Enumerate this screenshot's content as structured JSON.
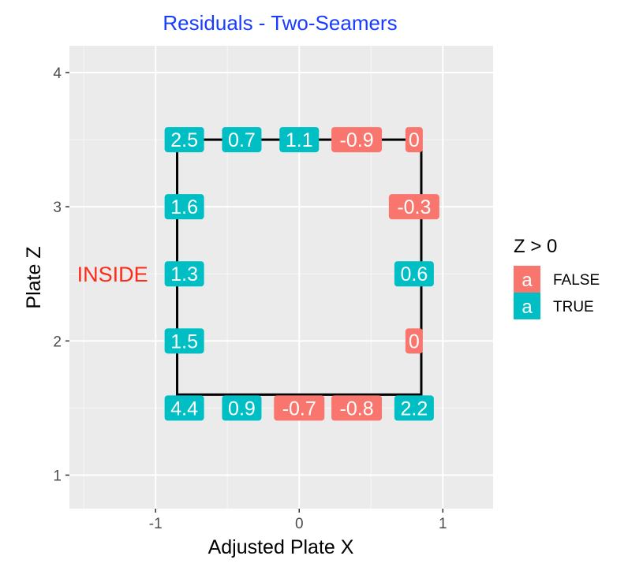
{
  "chart_data": {
    "type": "scatter",
    "title": "Residuals - Two-Seamers",
    "title_color": "#1a3cff",
    "xlabel": "Adjusted Plate X",
    "ylabel": "Plate Z",
    "xlim": [
      -1.6,
      1.35
    ],
    "ylim": [
      0.75,
      4.2
    ],
    "x_ticks": [
      -1,
      0,
      1
    ],
    "x_tick_labels": [
      "-1",
      "0",
      "1"
    ],
    "y_ticks": [
      1,
      2,
      3,
      4
    ],
    "y_tick_labels": [
      "1",
      "2",
      "3",
      "4"
    ],
    "grid": true,
    "panel_background": "#ebebeb",
    "strike_zone": {
      "x": [
        -0.85,
        0.85
      ],
      "z": [
        1.6,
        3.5
      ]
    },
    "annotation": {
      "text": "INSIDE",
      "x": -1.3,
      "z": 2.5,
      "color": "#ff2a1a"
    },
    "legend": {
      "title": "Z > 0",
      "position": "right",
      "entries": [
        {
          "label": "FALSE",
          "glyph": "a",
          "color": "#f8766d"
        },
        {
          "label": "TRUE",
          "glyph": "a",
          "color": "#00bfc4"
        }
      ]
    },
    "points": [
      {
        "x": -0.8,
        "z": 3.5,
        "label": "2.5",
        "positive": true
      },
      {
        "x": -0.4,
        "z": 3.5,
        "label": "0.7",
        "positive": true
      },
      {
        "x": 0.0,
        "z": 3.5,
        "label": "1.1",
        "positive": true
      },
      {
        "x": 0.4,
        "z": 3.5,
        "label": "-0.9",
        "positive": false
      },
      {
        "x": 0.8,
        "z": 3.5,
        "label": "0",
        "positive": false
      },
      {
        "x": -0.8,
        "z": 3.0,
        "label": "1.6",
        "positive": true
      },
      {
        "x": 0.8,
        "z": 3.0,
        "label": "-0.3",
        "positive": false
      },
      {
        "x": -0.8,
        "z": 2.5,
        "label": "1.3",
        "positive": true
      },
      {
        "x": 0.8,
        "z": 2.5,
        "label": "0.6",
        "positive": true
      },
      {
        "x": -0.8,
        "z": 2.0,
        "label": "1.5",
        "positive": true
      },
      {
        "x": 0.8,
        "z": 2.0,
        "label": "0",
        "positive": false
      },
      {
        "x": -0.8,
        "z": 1.5,
        "label": "4.4",
        "positive": true
      },
      {
        "x": -0.4,
        "z": 1.5,
        "label": "0.9",
        "positive": true
      },
      {
        "x": 0.0,
        "z": 1.5,
        "label": "-0.7",
        "positive": false
      },
      {
        "x": 0.4,
        "z": 1.5,
        "label": "-0.8",
        "positive": false
      },
      {
        "x": 0.8,
        "z": 1.5,
        "label": "2.2",
        "positive": true
      }
    ]
  }
}
